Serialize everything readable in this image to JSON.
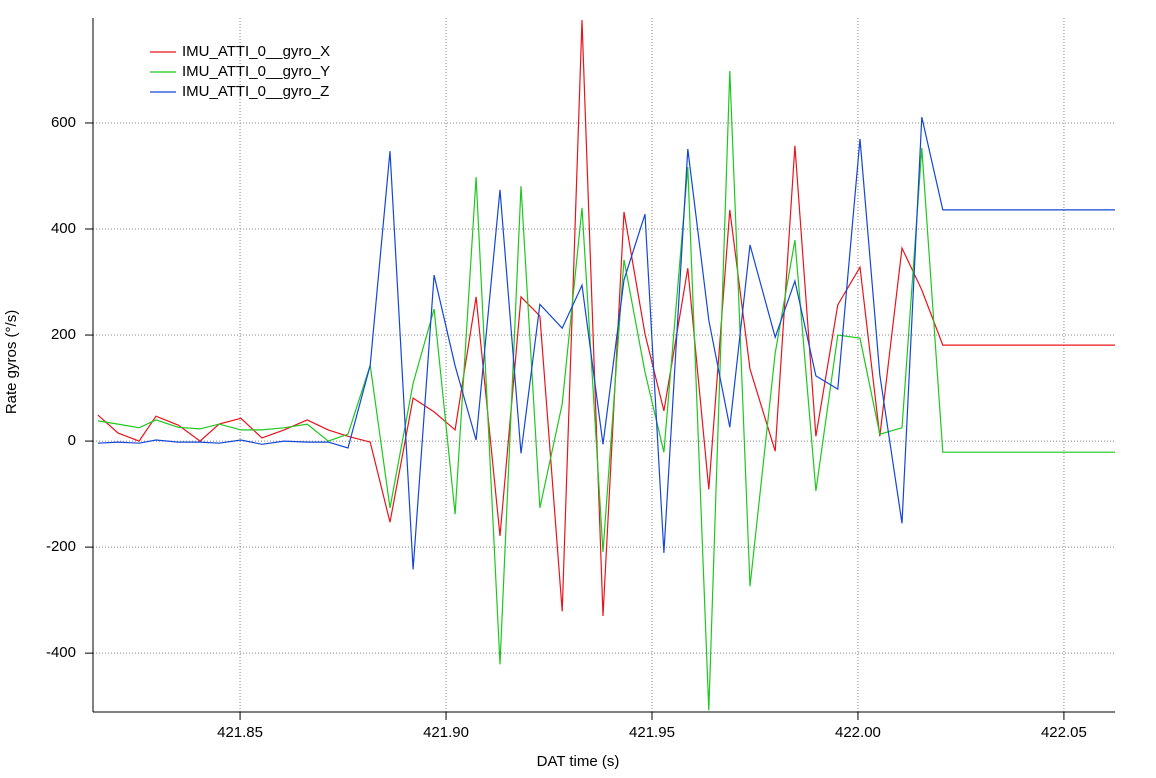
{
  "chart_data": {
    "type": "line",
    "x_label": "DAT time (s)",
    "y_label": "Rate gyros (°/s)",
    "x": [
      421.8155,
      421.8204,
      421.8255,
      421.8296,
      421.835,
      421.8403,
      421.8449,
      421.8502,
      421.8553,
      421.8607,
      421.8663,
      421.8714,
      421.8762,
      421.8816,
      421.8864,
      421.892,
      421.8971,
      421.9022,
      421.9073,
      421.9131,
      421.9182,
      421.9228,
      421.9282,
      421.933,
      421.9381,
      421.9432,
      421.9483,
      421.9529,
      421.9587,
      421.9638,
      421.9689,
      421.9738,
      421.9799,
      421.9847,
      421.9898,
      421.9951,
      422.0005,
      422.0053,
      422.0107,
      422.0155,
      422.0206,
      422.0624
    ],
    "series": [
      {
        "name": "IMU_ATTI_0__gyro_X",
        "color": "#e8141b",
        "values": [
          49,
          15,
          0,
          47,
          30,
          0,
          32,
          43,
          6,
          21,
          40,
          21,
          9,
          -2,
          -153,
          81,
          55,
          21,
          272,
          -179,
          272,
          236,
          -321,
          794,
          -330,
          432,
          202,
          57,
          326,
          -91,
          436,
          136,
          -19,
          557,
          9,
          257,
          328,
          9,
          364,
          285,
          181,
          181
        ]
      },
      {
        "name": "IMU_ATTI_0__gyro_Y",
        "color": "#1ec81e",
        "values": [
          38,
          32,
          25,
          40,
          26,
          23,
          32,
          21,
          21,
          25,
          32,
          0,
          13,
          143,
          -126,
          109,
          249,
          -138,
          498,
          -421,
          481,
          -126,
          70,
          440,
          -209,
          342,
          130,
          -21,
          517,
          -508,
          698,
          -274,
          166,
          379,
          -94,
          200,
          194,
          13,
          25,
          553,
          -21,
          -21
        ]
      },
      {
        "name": "IMU_ATTI_0__gyro_Z",
        "color": "#1446d8",
        "values": [
          -4,
          -2,
          -4,
          2,
          -2,
          -2,
          -4,
          2,
          -6,
          0,
          -2,
          -2,
          -13,
          143,
          547,
          -242,
          313,
          142,
          2,
          474,
          -23,
          258,
          213,
          294,
          -6,
          304,
          428,
          -211,
          551,
          228,
          26,
          370,
          196,
          302,
          123,
          98,
          570,
          125,
          -155,
          611,
          436,
          436
        ]
      }
    ],
    "xlim": [
      421.8143,
      422.0624
    ],
    "xticks": [
      421.85,
      {
        "value": 421.9,
        "label": "421.90"
      },
      421.95,
      {
        "value": 422.0,
        "label": "422.00"
      },
      422.05
    ],
    "ylim": [
      -511,
      798
    ],
    "yticks": [
      -400,
      -200,
      0,
      200,
      400,
      600
    ],
    "grid": true,
    "legend": "upper-left"
  }
}
